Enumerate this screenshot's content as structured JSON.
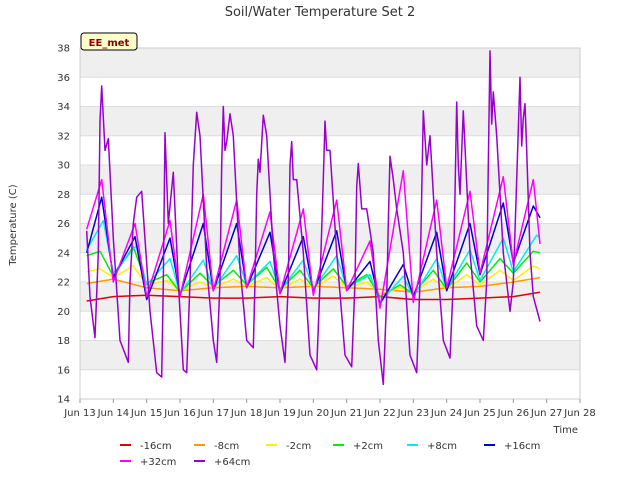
{
  "chart_data": {
    "type": "line",
    "title": "Soil/Water Temperature Set 2",
    "xlabel": "Time",
    "ylabel": "Temperature (C)",
    "site_label": "EE_met",
    "xlim": [
      13.0,
      28.0
    ],
    "ylim": [
      14,
      38
    ],
    "x_ticks": [
      13,
      14,
      15,
      16,
      17,
      18,
      19,
      20,
      21,
      22,
      23,
      24,
      25,
      26,
      27,
      28
    ],
    "x_tick_labels": [
      "Jun 13",
      "Jun 14",
      "Jun 15",
      "Jun 16",
      "Jun 17",
      "Jun 18",
      "Jun 19",
      "Jun 20",
      "Jun 21",
      "Jun 22",
      "Jun 23",
      "Jun 24",
      "Jun 25",
      "Jun 26",
      "Jun 27",
      "Jun 28"
    ],
    "y_ticks": [
      14,
      16,
      18,
      20,
      22,
      24,
      26,
      28,
      30,
      32,
      34,
      36,
      38
    ],
    "grid": true,
    "legend_position": "bottom",
    "series": [
      {
        "name": "-16cm",
        "color": "#dd0000",
        "x": [
          13.2,
          14.0,
          15.0,
          16.0,
          17.0,
          18.0,
          19.0,
          20.0,
          21.0,
          22.0,
          23.0,
          24.0,
          25.0,
          26.0,
          26.8
        ],
        "y": [
          20.7,
          21.0,
          21.1,
          21.0,
          20.9,
          20.9,
          21.0,
          20.9,
          20.9,
          21.0,
          20.8,
          20.8,
          20.9,
          21.0,
          21.3
        ]
      },
      {
        "name": "-8cm",
        "color": "#ff9900",
        "x": [
          13.2,
          14.0,
          15.0,
          16.0,
          17.0,
          18.0,
          19.0,
          20.0,
          21.0,
          22.0,
          23.0,
          24.0,
          25.0,
          26.0,
          26.8
        ],
        "y": [
          21.9,
          22.2,
          21.6,
          21.4,
          21.6,
          21.7,
          21.6,
          21.7,
          21.6,
          21.5,
          21.3,
          21.6,
          21.7,
          22.0,
          22.3
        ]
      },
      {
        "name": "-2cm",
        "color": "#ffee00",
        "x": [
          13.2,
          13.6,
          14.0,
          14.6,
          15.0,
          15.6,
          16.0,
          16.6,
          17.0,
          17.6,
          18.0,
          18.6,
          19.0,
          19.6,
          20.0,
          20.6,
          21.0,
          21.6,
          22.0,
          22.6,
          23.0,
          23.6,
          24.0,
          24.6,
          25.0,
          25.6,
          26.0,
          26.6,
          26.8
        ],
        "y": [
          22.7,
          22.9,
          22.3,
          23.1,
          21.8,
          22.1,
          21.4,
          22.0,
          21.6,
          22.2,
          21.7,
          22.3,
          21.5,
          22.2,
          21.6,
          22.4,
          21.6,
          22.0,
          21.2,
          21.6,
          21.3,
          22.2,
          21.5,
          22.5,
          21.8,
          22.8,
          22.1,
          23.1,
          22.9
        ]
      },
      {
        "name": "+2cm",
        "color": "#00ee00",
        "x": [
          13.2,
          13.6,
          14.0,
          14.6,
          15.0,
          15.6,
          16.0,
          16.6,
          17.0,
          17.6,
          18.0,
          18.6,
          19.0,
          19.6,
          20.0,
          20.6,
          21.0,
          21.6,
          22.0,
          22.6,
          23.0,
          23.6,
          24.0,
          24.6,
          25.0,
          25.6,
          26.0,
          26.6,
          26.8
        ],
        "y": [
          23.8,
          24.1,
          22.4,
          24.4,
          21.9,
          22.5,
          21.3,
          22.6,
          21.7,
          22.8,
          21.8,
          23.0,
          21.5,
          22.8,
          21.6,
          22.9,
          21.7,
          22.5,
          21.0,
          21.8,
          21.2,
          22.8,
          21.5,
          23.3,
          22.0,
          23.6,
          22.6,
          24.1,
          24.0
        ]
      },
      {
        "name": "+8cm",
        "color": "#00eeee",
        "x": [
          13.2,
          13.7,
          14.0,
          14.7,
          15.0,
          15.7,
          16.0,
          16.7,
          17.0,
          17.7,
          18.0,
          18.7,
          19.0,
          19.7,
          20.0,
          20.7,
          21.0,
          21.7,
          22.0,
          22.7,
          23.0,
          23.7,
          24.0,
          24.7,
          25.0,
          25.7,
          26.0,
          26.7,
          26.8
        ],
        "y": [
          24.2,
          26.2,
          22.6,
          24.5,
          21.8,
          23.6,
          21.2,
          23.5,
          21.5,
          23.8,
          21.8,
          23.4,
          21.4,
          23.5,
          21.5,
          23.8,
          21.6,
          22.5,
          20.6,
          22.4,
          21.0,
          23.6,
          21.5,
          24.2,
          22.1,
          25.0,
          22.7,
          25.2,
          25.0
        ]
      },
      {
        "name": "+16cm",
        "color": "#0000cc",
        "x": [
          13.2,
          13.65,
          14.0,
          14.65,
          15.0,
          15.7,
          16.0,
          16.7,
          17.0,
          17.7,
          18.0,
          18.7,
          19.0,
          19.7,
          20.0,
          20.7,
          21.0,
          21.7,
          22.0,
          22.7,
          23.0,
          23.7,
          24.0,
          24.7,
          25.0,
          25.7,
          26.0,
          26.6,
          26.8
        ],
        "y": [
          24.0,
          27.8,
          22.3,
          25.1,
          20.8,
          25.0,
          21.1,
          26.0,
          21.4,
          26.0,
          21.6,
          25.4,
          21.2,
          25.1,
          21.3,
          25.5,
          21.4,
          23.4,
          20.5,
          23.2,
          21.0,
          25.4,
          21.4,
          26.0,
          22.5,
          27.4,
          23.3,
          27.2,
          26.4
        ]
      },
      {
        "name": "+32cm",
        "color": "#ff00ff",
        "x": [
          13.2,
          13.65,
          14.0,
          14.65,
          15.0,
          15.7,
          16.0,
          16.7,
          17.0,
          17.7,
          18.0,
          18.7,
          19.0,
          19.7,
          20.0,
          20.7,
          21.0,
          21.7,
          22.0,
          22.7,
          23.0,
          23.7,
          24.0,
          24.7,
          25.0,
          25.7,
          26.0,
          26.6,
          26.8
        ],
        "y": [
          25.6,
          29.0,
          22.0,
          26.0,
          21.0,
          26.2,
          21.0,
          28.0,
          21.4,
          27.6,
          21.6,
          26.8,
          21.2,
          27.0,
          21.1,
          27.6,
          21.4,
          24.8,
          20.2,
          29.6,
          20.6,
          27.6,
          21.6,
          28.2,
          22.6,
          29.2,
          23.2,
          29.0,
          24.6
        ]
      },
      {
        "name": "+64cm",
        "color": "#9900cc",
        "x": [
          13.2,
          13.3,
          13.45,
          13.55,
          13.6,
          13.65,
          13.75,
          13.85,
          14.0,
          14.2,
          14.45,
          14.5,
          14.6,
          14.7,
          14.85,
          15.1,
          15.3,
          15.45,
          15.5,
          15.55,
          15.65,
          15.8,
          15.95,
          16.1,
          16.2,
          16.3,
          16.4,
          16.5,
          16.6,
          16.8,
          17.0,
          17.1,
          17.2,
          17.25,
          17.3,
          17.35,
          17.4,
          17.5,
          17.6,
          17.8,
          18.0,
          18.2,
          18.25,
          18.3,
          18.35,
          18.4,
          18.5,
          18.6,
          18.8,
          19.0,
          19.15,
          19.25,
          19.3,
          19.35,
          19.4,
          19.5,
          19.7,
          19.9,
          20.1,
          20.2,
          20.3,
          20.35,
          20.4,
          20.5,
          20.7,
          20.95,
          21.15,
          21.25,
          21.3,
          21.35,
          21.45,
          21.6,
          21.8,
          21.95,
          22.1,
          22.2,
          22.25,
          22.3,
          22.4,
          22.5,
          22.7,
          22.9,
          23.1,
          23.2,
          23.25,
          23.3,
          23.4,
          23.5,
          23.7,
          23.9,
          24.1,
          24.2,
          24.25,
          24.3,
          24.35,
          24.4,
          24.5,
          24.7,
          24.9,
          25.1,
          25.2,
          25.25,
          25.3,
          25.35,
          25.4,
          25.5,
          25.7,
          25.9,
          26.0,
          26.1,
          26.2,
          26.25,
          26.3,
          26.35,
          26.4,
          26.5,
          26.6,
          26.8
        ],
        "y": [
          25.5,
          21.0,
          18.2,
          24.0,
          33.0,
          35.4,
          31.0,
          31.8,
          25.0,
          18.0,
          16.5,
          22.0,
          26.0,
          27.8,
          28.2,
          20.0,
          15.8,
          15.5,
          22.0,
          32.2,
          26.0,
          29.5,
          22.0,
          16.0,
          15.8,
          22.0,
          30.0,
          33.6,
          32.0,
          23.0,
          18.0,
          16.5,
          22.0,
          30.0,
          34.0,
          31.0,
          31.6,
          33.5,
          32.0,
          23.0,
          18.0,
          17.5,
          22.0,
          28.0,
          30.4,
          29.5,
          33.4,
          32.0,
          24.0,
          19.0,
          16.5,
          22.0,
          30.0,
          31.6,
          29.0,
          29.0,
          24.0,
          17.0,
          16.0,
          22.0,
          29.0,
          33.0,
          31.0,
          31.0,
          24.0,
          17.0,
          16.2,
          22.0,
          28.5,
          30.1,
          27.0,
          27.0,
          24.0,
          18.0,
          15.0,
          21.0,
          26.0,
          30.6,
          29.0,
          27.0,
          24.0,
          17.0,
          15.8,
          22.0,
          28.0,
          33.7,
          30.0,
          32.0,
          24.0,
          18.0,
          16.8,
          22.0,
          28.0,
          34.3,
          30.0,
          28.0,
          33.7,
          24.0,
          19.0,
          18.0,
          22.0,
          30.0,
          37.8,
          32.8,
          35.0,
          32.0,
          24.0,
          20.0,
          22.0,
          29.0,
          36.0,
          31.3,
          33.2,
          34.2,
          31.0,
          24.0,
          21.0,
          19.3
        ]
      }
    ]
  }
}
